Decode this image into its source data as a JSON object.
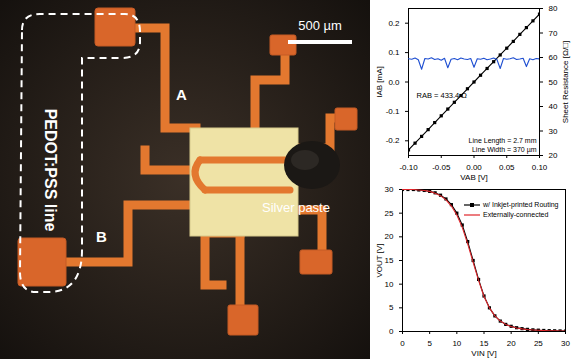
{
  "micrograph": {
    "scale_bar": "500 µm",
    "labels": [
      "PEDOT:PSS line",
      "A",
      "B",
      "Silver paste"
    ]
  },
  "chart_data": [
    {
      "type": "line",
      "xlabel": "VAB [V]",
      "ylabel": "IAB [mA]",
      "y2label": "Sheet Resistance [Ω/□]",
      "xlim": [
        -0.1,
        0.1
      ],
      "xticks": [
        {
          "value": -0.1,
          "label": "-0.10"
        },
        {
          "value": -0.05,
          "label": "-0.05"
        },
        {
          "value": 0,
          "label": "0.00"
        },
        {
          "value": 0.05,
          "label": "0.05"
        },
        {
          "value": 0.1,
          "label": "0.10"
        }
      ],
      "ylim": [
        -0.25,
        0.25
      ],
      "yticks": [
        {
          "value": -0.2,
          "label": "-0.2"
        },
        {
          "value": -0.1,
          "label": "-0.1"
        },
        {
          "value": 0,
          "label": "0.0"
        },
        {
          "value": 0.1,
          "label": "0.1"
        },
        {
          "value": 0.2,
          "label": "0.2"
        }
      ],
      "y2lim": [
        20,
        80
      ],
      "y2ticks": [
        20,
        30,
        40,
        50,
        60,
        70,
        80
      ],
      "annotations": [
        "RAB = 433.4 Ω",
        "Line Length = 2.7 mm",
        "Line Width = 370 µm"
      ],
      "series": [
        {
          "name": "IAB",
          "color": "#000000",
          "marker": "square",
          "line_style": "solid",
          "x": [
            -0.1,
            -0.09,
            -0.08,
            -0.07,
            -0.06,
            -0.05,
            -0.04,
            -0.03,
            -0.02,
            -0.01,
            0,
            0.01,
            0.02,
            0.03,
            0.04,
            0.05,
            0.06,
            0.07,
            0.08,
            0.09,
            0.1
          ],
          "values": [
            -0.231,
            -0.208,
            -0.185,
            -0.162,
            -0.138,
            -0.115,
            -0.092,
            -0.069,
            -0.046,
            -0.023,
            0,
            0.023,
            0.046,
            0.069,
            0.092,
            0.115,
            0.138,
            0.162,
            0.185,
            0.208,
            0.231
          ]
        },
        {
          "name": "Sheet Resistance",
          "color": "#1f4fd1",
          "marker": "none",
          "line_style": "solid",
          "axis": "y2",
          "x": [
            -0.1,
            -0.095,
            -0.09,
            -0.085,
            -0.08,
            -0.075,
            -0.07,
            -0.065,
            -0.06,
            -0.055,
            -0.05,
            -0.045,
            -0.04,
            -0.035,
            -0.03,
            -0.025,
            -0.02,
            -0.015,
            -0.01,
            -0.005,
            0,
            0.005,
            0.01,
            0.015,
            0.02,
            0.025,
            0.03,
            0.035,
            0.04,
            0.045,
            0.05,
            0.055,
            0.06,
            0.065,
            0.07,
            0.075,
            0.08,
            0.085,
            0.09,
            0.095,
            0.1
          ],
          "values": [
            59.5,
            59.3,
            59.8,
            59.1,
            55.2,
            59.6,
            59.4,
            59.9,
            59.2,
            59.5,
            58.9,
            59.7,
            55.8,
            59.3,
            59.6,
            59.1,
            59.8,
            59.4,
            59.2,
            59.6,
            56.0,
            59.5,
            59.3,
            59.7,
            59.1,
            59.4,
            59.8,
            59.2,
            55.5,
            59.6,
            59.3,
            59.5,
            59.9,
            59.2,
            59.4,
            59.7,
            56.3,
            59.5,
            59.1,
            59.6,
            59.4
          ]
        }
      ]
    },
    {
      "type": "line",
      "xlabel": "VIN [V]",
      "ylabel": "VOUT [V]",
      "xlim": [
        0,
        30
      ],
      "xticks": [
        0,
        5,
        10,
        15,
        20,
        25,
        30
      ],
      "ylim": [
        0,
        30
      ],
      "yticks": [
        0,
        5,
        10,
        15,
        20,
        25,
        30
      ],
      "legend": "upper right",
      "series": [
        {
          "name": "w/ Inkjet-printed Routing",
          "color": "#000000",
          "marker": "square",
          "line_style": "solid",
          "x": [
            0,
            1,
            2,
            3,
            4,
            5,
            6,
            7,
            8,
            9,
            10,
            11,
            12,
            13,
            14,
            15,
            16,
            17,
            18,
            19,
            20,
            21,
            22,
            23,
            24,
            25,
            26,
            27,
            28,
            29,
            30
          ],
          "values": [
            30,
            30,
            30,
            29.9,
            29.8,
            29.6,
            29.3,
            28.8,
            28,
            26.8,
            25,
            22.5,
            19,
            15,
            11,
            7.5,
            5,
            3.3,
            2.2,
            1.5,
            1.1,
            0.8,
            0.6,
            0.45,
            0.35,
            0.28,
            0.22,
            0.18,
            0.15,
            0.12,
            0.1
          ]
        },
        {
          "name": "Externally-connected",
          "color": "#e0262b",
          "marker": "none",
          "line_style": "solid",
          "x": [
            0,
            1,
            2,
            3,
            4,
            5,
            6,
            7,
            8,
            9,
            10,
            11,
            12,
            13,
            14,
            15,
            16,
            17,
            18,
            19,
            20,
            21,
            22,
            23,
            24,
            25,
            26,
            27,
            28,
            29,
            30
          ],
          "values": [
            30,
            30,
            30,
            29.9,
            29.8,
            29.6,
            29.2,
            28.7,
            27.8,
            26.5,
            24.6,
            22,
            18.5,
            14.6,
            10.8,
            7.4,
            5,
            3.3,
            2.2,
            1.5,
            1.05,
            0.75,
            0.55,
            0.42,
            0.33,
            0.26,
            0.2,
            0.16,
            0.13,
            0.11,
            0.09
          ]
        }
      ]
    }
  ]
}
